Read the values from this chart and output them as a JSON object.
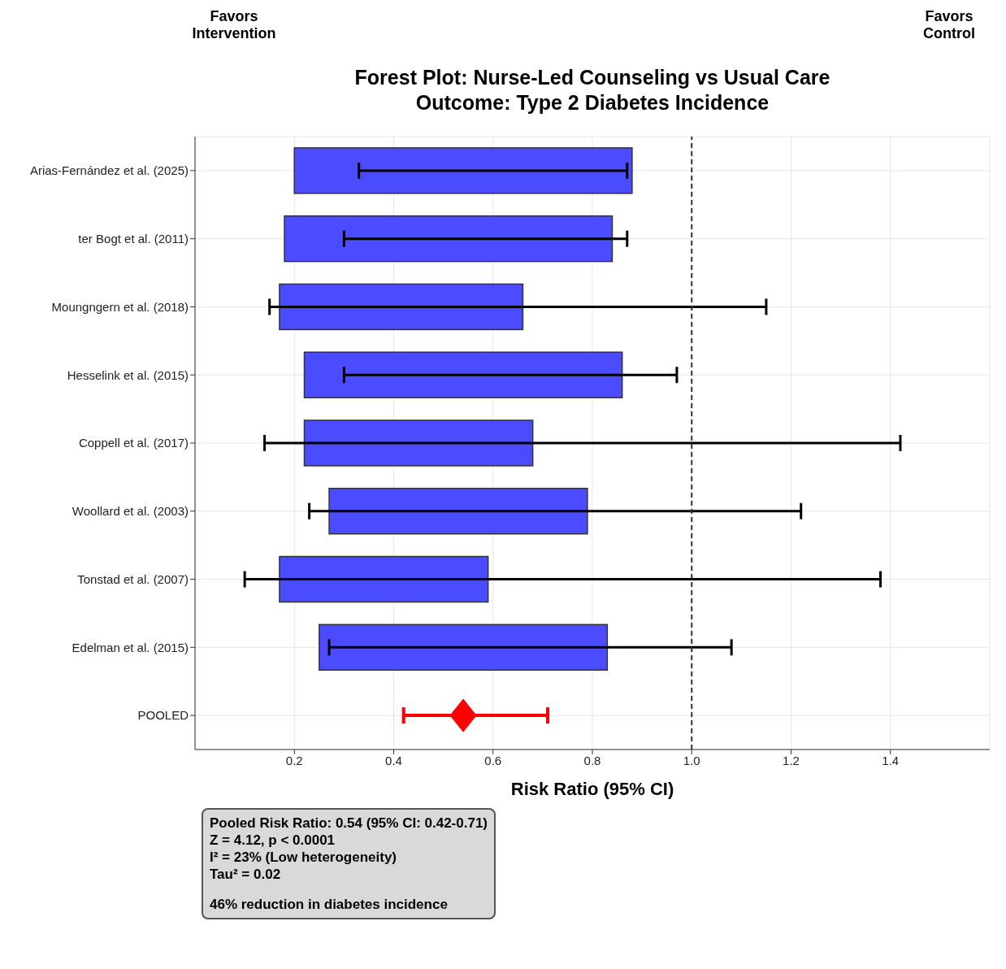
{
  "chart_data": {
    "type": "bar",
    "orientation": "horizontal",
    "title": "Forest Plot: Nurse-Led Counseling vs Usual Care",
    "subtitle": "Outcome: Type 2 Diabetes Incidence",
    "xlabel": "Risk Ratio (95% CI)",
    "annotations": [
      "Favors Intervention",
      "Favors Control",
      "Pooled Risk Ratio: 0.54 (95% CI: 0.42-0.71)",
      "Z = 4.12, p < 0.0001",
      "I² = 23% (Low heterogeneity)",
      "Tau² = 0.02",
      "46% reduction in diabetes incidence"
    ],
    "categories": [
      "Arias-Fernández et al. (2025)",
      "ter Bogt et al. (2011)",
      "Moungngern et al. (2018)",
      "Hesselink et al. (2015)",
      "Coppell et al. (2017)",
      "Woollard et al. (2003)",
      "Tonstad et al. (2007)",
      "Edelman et al. (2015)",
      "POOLED"
    ],
    "series": [
      {
        "color": "#4b4bff",
        "base": [
          0.2,
          0.18,
          0.17,
          0.22,
          0.22,
          0.27,
          0.17,
          0.25,
          null
        ],
        "values": [
          0.68,
          0.66,
          0.49,
          0.64,
          0.46,
          0.52,
          0.42,
          0.58,
          null
        ],
        "errors": [
          [
            0.33,
            0.87
          ],
          [
            0.3,
            0.87
          ],
          [
            0.15,
            1.15
          ],
          [
            0.3,
            0.97
          ],
          [
            0.14,
            1.42
          ],
          [
            0.23,
            1.22
          ],
          [
            0.1,
            1.38
          ],
          [
            0.27,
            1.08
          ],
          null
        ]
      },
      {
        "type": "scatter",
        "marker": "diamond",
        "color": "#ff0000",
        "values": [
          null,
          null,
          null,
          null,
          null,
          null,
          null,
          null,
          0.54
        ],
        "errors": [
          null,
          null,
          null,
          null,
          null,
          null,
          null,
          null,
          [
            0.42,
            0.71
          ]
        ]
      }
    ],
    "xlim": [
      0,
      1.6
    ],
    "xticks": [
      0.2,
      0.4,
      0.6,
      0.8,
      {
        "value": 1,
        "label": "1.0"
      },
      1.2,
      1.4
    ],
    "ref_lines": [
      {
        "axis": "x",
        "value": 1,
        "color": "#333333",
        "line_style": "dashed"
      }
    ],
    "grid": true
  }
}
